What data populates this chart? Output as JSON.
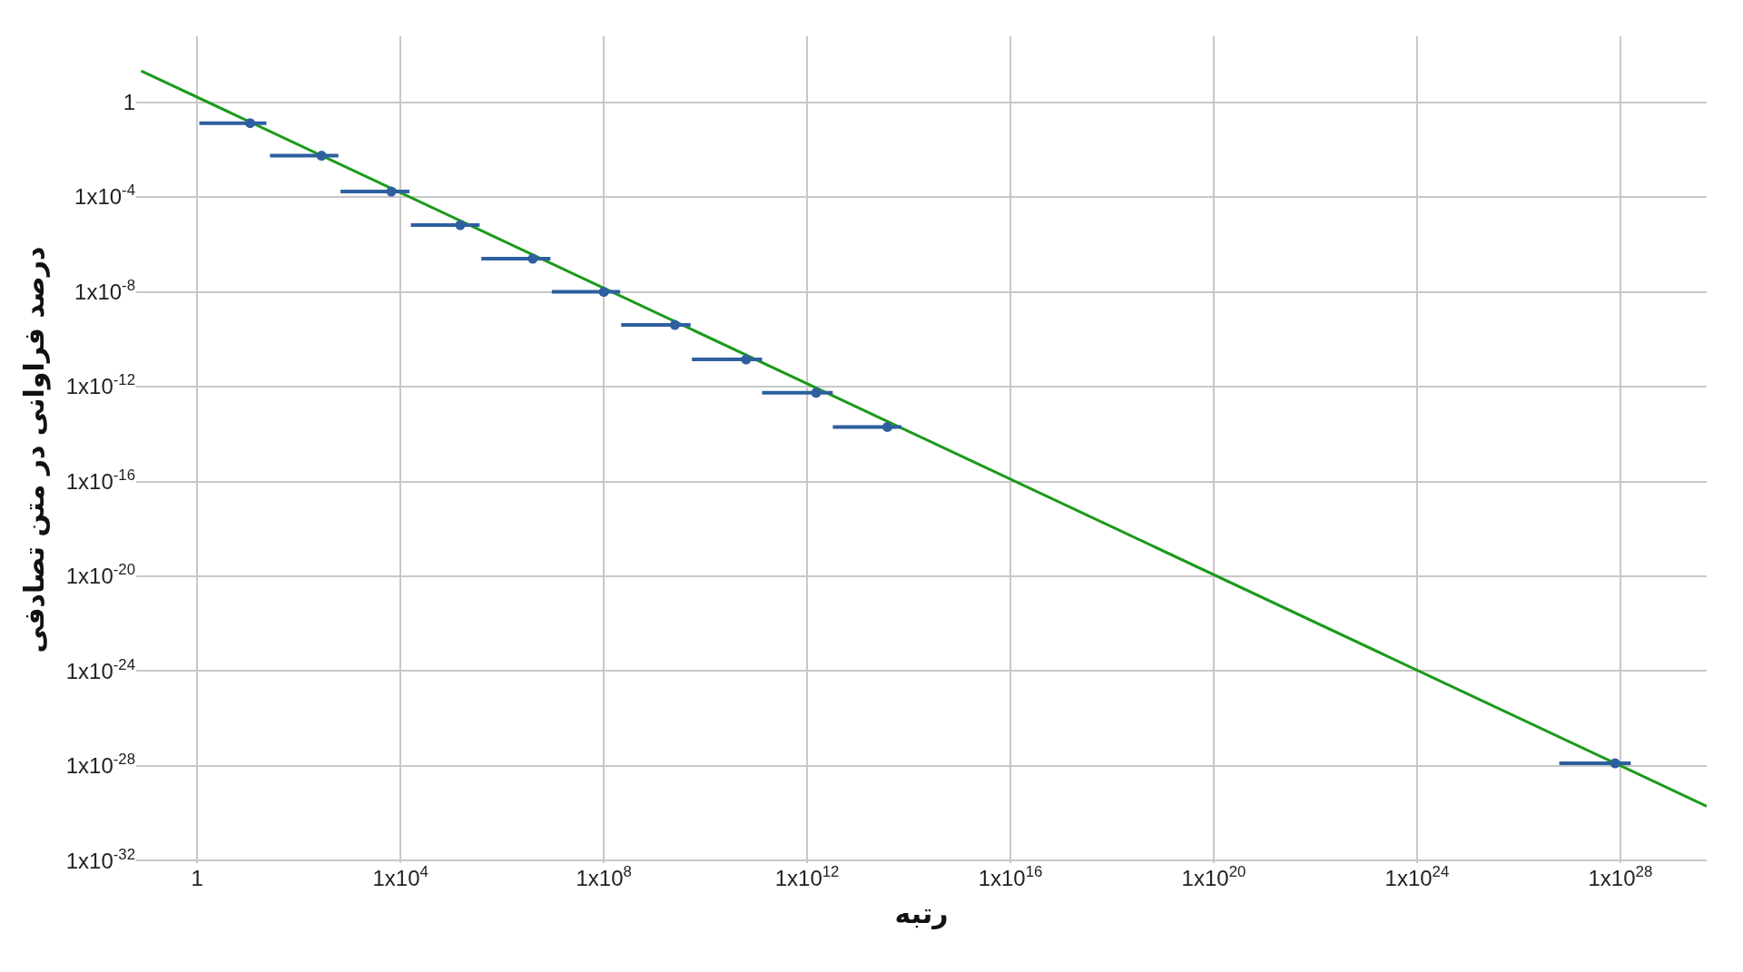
{
  "chart_data": {
    "type": "scatter",
    "xlabel": "رتبه",
    "ylabel": "درصد فراوانی در متن تصادفی",
    "log": "xy",
    "grid": true,
    "xlim": [
      0.063,
      5e+29
    ],
    "ylim": [
      8e-33,
      600.0
    ],
    "xticks": [
      1,
      {
        "value": 10000.0,
        "label": "1x10$^{4}$"
      },
      {
        "value": 100000000.0,
        "label": "1x10$^{8}$"
      },
      {
        "value": 1000000000000.0,
        "label": "1x10$^{12}$"
      },
      {
        "value": 1e+16,
        "label": "1x10$^{16}$"
      },
      {
        "value": 1e+20,
        "label": "1x10$^{20}$"
      },
      {
        "value": 1e+24,
        "label": "1x10$^{24}$"
      },
      {
        "value": 1e+28,
        "label": "1x10$^{28}$"
      }
    ],
    "yticks": [
      1,
      {
        "value": 0.0001,
        "label": "1x10$^{-4}$"
      },
      {
        "value": 1e-08,
        "label": "1x10$^{-8}$"
      },
      {
        "value": 1e-12,
        "label": "1x10$^{-12}$"
      },
      {
        "value": 1e-16,
        "label": "1x10$^{-16}$"
      },
      {
        "value": 1e-20,
        "label": "1x10$^{-20}$"
      },
      {
        "value": 1e-24,
        "label": "1x10$^{-24}$"
      },
      {
        "value": 1e-28,
        "label": "1x10$^{-28}$"
      },
      {
        "value": 1e-32,
        "label": "1x10$^{-32}$"
      }
    ],
    "series": [
      {
        "type": "line",
        "color": "#1a9a1a",
        "marker": "none",
        "line_style": "solid",
        "x": [
          0.079,
          5e+29
        ],
        "values": [
          21.0,
          2e-30
        ]
      },
      {
        "color": "#2e5f9e",
        "marker": "circle",
        "x": [
          11.0,
          280.0,
          6600.0,
          150000.0,
          4000000.0,
          100000000.0,
          2500000000.0,
          63000000000.0,
          1500000000000.0,
          38000000000000.0,
          7.9e+27
        ],
        "values": [
          0.13,
          0.0055,
          0.00017,
          6.5e-06,
          2.5e-07,
          1e-08,
          4e-10,
          1.4e-11,
          5.5e-13,
          2e-14,
          1.3e-28
        ],
        "xerrors": [
          [
            1.1,
            23.0
          ],
          [
            27.0,
            600.0
          ],
          [
            660.0,
            15000.0
          ],
          [
            16000.0,
            360000.0
          ],
          [
            390000.0,
            8900000.0
          ],
          [
            9500000.0,
            210000000.0
          ],
          [
            220000000.0,
            5100000000.0
          ],
          [
            5400000000.0,
            130000000000.0
          ],
          [
            130000000000.0,
            3200000000000.0
          ],
          [
            3200000000000.0,
            72000000000000.0
          ],
          [
            6.3e+26,
            1.6e+28
          ]
        ]
      }
    ]
  }
}
